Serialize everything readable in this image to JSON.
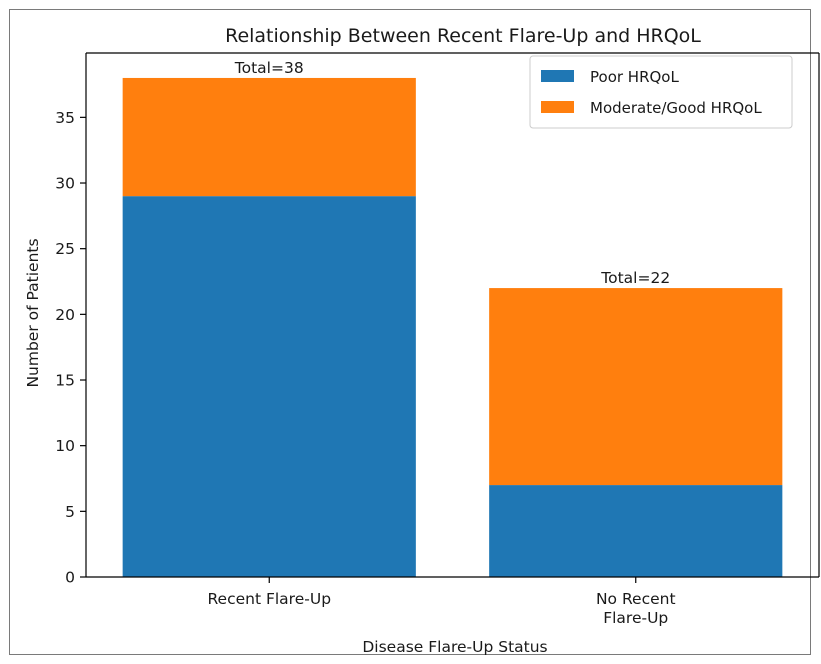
{
  "chart_data": {
    "type": "bar",
    "stacked": true,
    "title": "Relationship Between Recent Flare-Up and HRQoL",
    "xlabel": "Disease Flare-Up Status",
    "ylabel": "Number of Patients",
    "categories": [
      [
        "Recent Flare-Up"
      ],
      [
        "No Recent",
        "Flare-Up"
      ]
    ],
    "series": [
      {
        "name": "Poor HRQoL",
        "values": [
          29,
          7
        ],
        "color": "#1f77b4"
      },
      {
        "name": "Moderate/Good HRQoL",
        "values": [
          9,
          15
        ],
        "color": "#ff7f0e"
      }
    ],
    "totals": [
      "Total=38",
      "Total=22"
    ],
    "ylim": [
      0,
      39.9
    ],
    "yticks": [
      0,
      5,
      10,
      15,
      20,
      25,
      30,
      35
    ],
    "grid": false,
    "legend_position": "top-right"
  }
}
